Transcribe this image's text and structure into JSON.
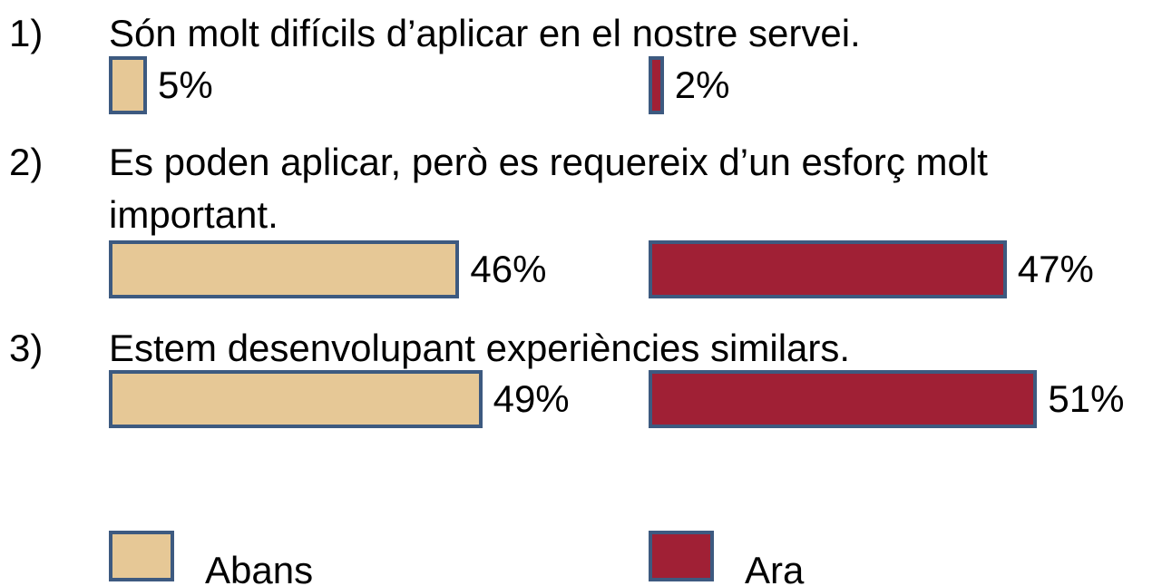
{
  "chart_data": {
    "type": "bar",
    "category_numbers": [
      "1)",
      "2)",
      "3)"
    ],
    "categories": [
      "Són molt difícils d’aplicar en el nostre servei.",
      "Es poden aplicar, però es requereix d’un esforç molt important.",
      "Estem desenvolupant experiències similars."
    ],
    "series": [
      {
        "name": "Abans",
        "color": "#e6c896",
        "values": [
          5,
          46,
          49
        ],
        "value_labels": [
          "5%",
          "46%",
          "49%"
        ]
      },
      {
        "name": "Ara",
        "color": "#a02035",
        "values": [
          2,
          47,
          51
        ],
        "value_labels": [
          "2%",
          "47%",
          "51%"
        ]
      }
    ]
  }
}
